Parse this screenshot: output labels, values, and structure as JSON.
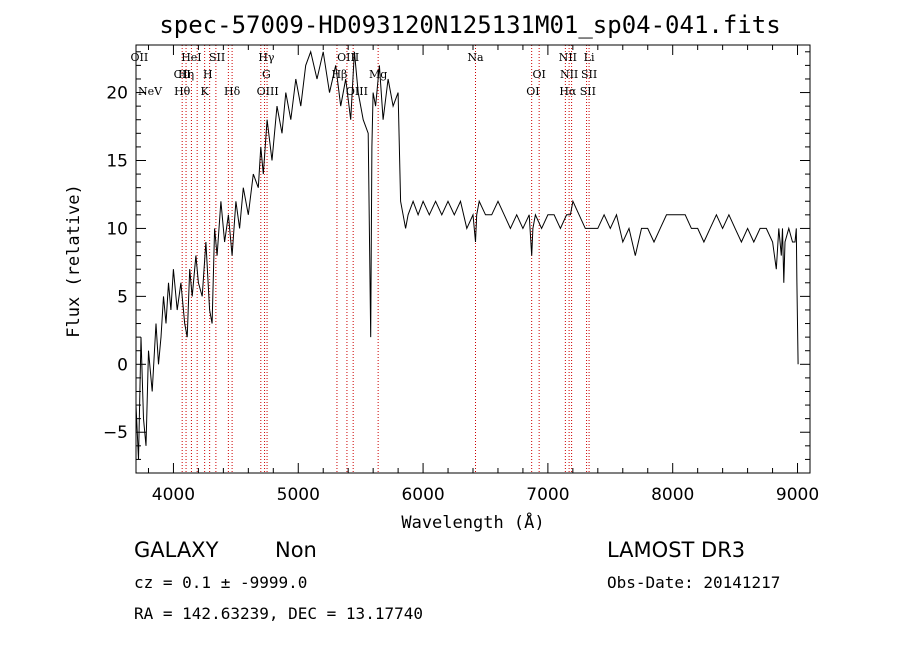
{
  "chart_data": {
    "type": "line",
    "title": "spec-57009-HD093120N125131M01_sp04-041.fits",
    "xlabel": "Wavelength (Å)",
    "ylabel": "Flux (relative)",
    "xlim": [
      3700,
      9100
    ],
    "ylim": [
      -8,
      23.5
    ],
    "xticks": [
      4000,
      5000,
      6000,
      7000,
      8000,
      9000
    ],
    "yticks": [
      -5,
      0,
      5,
      10,
      15,
      20
    ],
    "grid": false,
    "series": [
      {
        "x": [
          3700,
          3720,
          3740,
          3760,
          3780,
          3800,
          3830,
          3860,
          3880,
          3900,
          3920,
          3940,
          3960,
          3980,
          4000,
          4030,
          4060,
          4090,
          4110,
          4130,
          4150,
          4180,
          4200,
          4230,
          4260,
          4290,
          4310,
          4330,
          4350,
          4380,
          4410,
          4440,
          4470,
          4500,
          4530,
          4560,
          4600,
          4640,
          4680,
          4700,
          4720,
          4750,
          4790,
          4830,
          4870,
          4900,
          4940,
          4980,
          5020,
          5060,
          5100,
          5150,
          5200,
          5250,
          5300,
          5340,
          5380,
          5420,
          5450,
          5480,
          5520,
          5560,
          5580,
          5590,
          5600,
          5620,
          5650,
          5680,
          5720,
          5760,
          5800,
          5820,
          5840,
          5860,
          5880,
          5920,
          5960,
          6000,
          6050,
          6100,
          6150,
          6200,
          6250,
          6300,
          6350,
          6400,
          6420,
          6430,
          6450,
          6500,
          6550,
          6600,
          6650,
          6700,
          6750,
          6800,
          6850,
          6870,
          6880,
          6900,
          6950,
          7000,
          7050,
          7100,
          7150,
          7180,
          7200,
          7250,
          7300,
          7350,
          7400,
          7450,
          7500,
          7550,
          7600,
          7650,
          7700,
          7750,
          7800,
          7850,
          7900,
          7950,
          8000,
          8050,
          8100,
          8150,
          8200,
          8250,
          8300,
          8350,
          8400,
          8450,
          8500,
          8550,
          8600,
          8650,
          8700,
          8750,
          8800,
          8830,
          8850,
          8870,
          8880,
          8890,
          8900,
          8930,
          8960,
          8980,
          8990,
          8995,
          9000,
          9005
        ],
        "y": [
          -3,
          -7,
          2,
          -4,
          -6,
          1,
          -2,
          3,
          0,
          2,
          5,
          3,
          6,
          4,
          7,
          4,
          6,
          3,
          2,
          7,
          5,
          8,
          6,
          5,
          9,
          4,
          3,
          10,
          8,
          12,
          9,
          11,
          8,
          12,
          10,
          13,
          11,
          14,
          13,
          16,
          14,
          18,
          15,
          19,
          17,
          20,
          18,
          21,
          19,
          22,
          23,
          21,
          23,
          20,
          22,
          19,
          21,
          18,
          23,
          20,
          18,
          17,
          2,
          16,
          20,
          19,
          22,
          18,
          21,
          19,
          20,
          12,
          11,
          10,
          11,
          12,
          11,
          12,
          11,
          12,
          11,
          12,
          11,
          12,
          10,
          11,
          9,
          11,
          12,
          11,
          11,
          12,
          11,
          10,
          11,
          10,
          11,
          8,
          10,
          11,
          10,
          11,
          11,
          10,
          11,
          11,
          12,
          11,
          10,
          10,
          10,
          11,
          10,
          11,
          9,
          10,
          8,
          10,
          10,
          9,
          10,
          11,
          11,
          11,
          11,
          10,
          10,
          9,
          10,
          11,
          10,
          11,
          10,
          9,
          10,
          9,
          10,
          10,
          9,
          7,
          10,
          8,
          10,
          6,
          9,
          10,
          9,
          9,
          10,
          6,
          3,
          0
        ]
      }
    ],
    "lines": [
      {
        "label": "OII",
        "x": 3727,
        "row": 0
      },
      {
        "label": "NeV",
        "x": 3426,
        "row": 2
      },
      {
        "label": "CII",
        "x": 4070,
        "row": 1
      },
      {
        "label": "Hθ",
        "x": 4070,
        "row": 2
      },
      {
        "label": "Hη",
        "x": 4101,
        "row": 1
      },
      {
        "label": "HeI",
        "x": 4144,
        "row": 0
      },
      {
        "label": "K",
        "x": 4250,
        "row": 2
      },
      {
        "label": "H",
        "x": 4275,
        "row": 1
      },
      {
        "label": "SII",
        "x": 4350,
        "row": 0
      },
      {
        "label": "Hδ",
        "x": 4470,
        "row": 2
      },
      {
        "label": "Hγ",
        "x": 4745,
        "row": 0
      },
      {
        "label": "G",
        "x": 4745,
        "row": 1
      },
      {
        "label": "OIII",
        "x": 4755,
        "row": 2
      },
      {
        "label": "OIII",
        "x": 5400,
        "row": 0
      },
      {
        "label": "Hβ",
        "x": 5330,
        "row": 1
      },
      {
        "label": "OIII",
        "x": 5470,
        "row": 2
      },
      {
        "label": "Mg",
        "x": 5640,
        "row": 1
      },
      {
        "label": "Na",
        "x": 6420,
        "row": 0
      },
      {
        "label": "OI",
        "x": 6930,
        "row": 1
      },
      {
        "label": "OI",
        "x": 6880,
        "row": 2
      },
      {
        "label": "NII",
        "x": 7160,
        "row": 0
      },
      {
        "label": "NII",
        "x": 7170,
        "row": 1
      },
      {
        "label": "Hα",
        "x": 7160,
        "row": 2
      },
      {
        "label": "Li",
        "x": 7330,
        "row": 0
      },
      {
        "label": "SII",
        "x": 7330,
        "row": 1
      },
      {
        "label": "SII",
        "x": 7320,
        "row": 2
      }
    ],
    "line_marks": [
      4070,
      4101,
      4144,
      4190,
      4250,
      4290,
      4340,
      4440,
      4470,
      4700,
      4730,
      4750,
      5310,
      5390,
      5440,
      5640,
      6420,
      6870,
      6930,
      7140,
      7170,
      7190,
      7310,
      7330
    ]
  },
  "info": {
    "class": "GALAXY",
    "subclass": "Non",
    "survey": "LAMOST DR3",
    "cz": "cz = 0.1 ± -9999.0",
    "obsdate": "Obs-Date: 20141217",
    "radec": "RA = 142.63239, DEC =  13.17740"
  }
}
